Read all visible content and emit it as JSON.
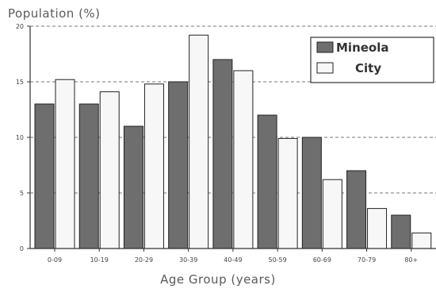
{
  "chart_data": {
    "type": "bar",
    "ylabel": "Population (%)",
    "xlabel": "Age Group (years)",
    "categories": [
      "0-09",
      "10-19",
      "20-29",
      "30-39",
      "40-49",
      "50-59",
      "60-69",
      "70-79",
      "80+"
    ],
    "series": [
      {
        "name": "Mineola",
        "values": [
          13,
          13,
          11,
          15,
          17,
          12,
          10,
          7,
          3
        ]
      },
      {
        "name": "City",
        "values": [
          15.2,
          14.1,
          14.8,
          19.2,
          16,
          9.9,
          6.2,
          3.6,
          1.4
        ]
      }
    ],
    "yticks": [
      0,
      5,
      10,
      15,
      20
    ],
    "ylim": [
      0,
      20
    ],
    "grid": true,
    "legend_position": "top-right",
    "colors": {
      "Mineola": "#6e6e6e",
      "City": "#f7f7f7"
    }
  }
}
